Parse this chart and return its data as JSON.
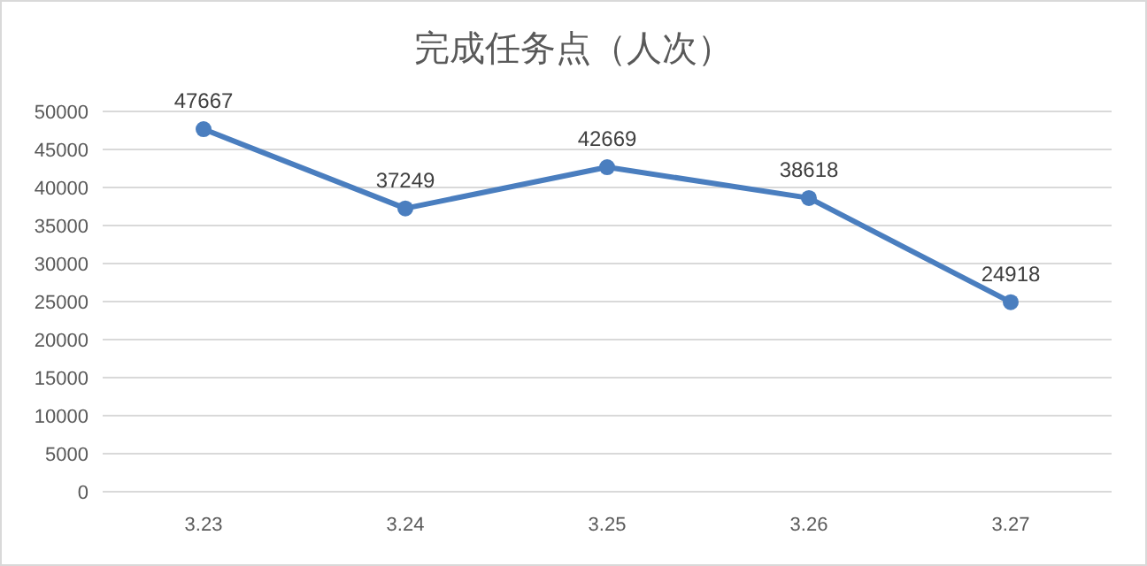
{
  "chart_data": {
    "type": "line",
    "title": "完成任务点（人次）",
    "categories": [
      "3.23",
      "3.24",
      "3.25",
      "3.26",
      "3.27"
    ],
    "values": [
      47667,
      37249,
      42669,
      38618,
      24918
    ],
    "color": "#4a7ebf",
    "ylim": [
      0,
      50000
    ],
    "yticks": [
      0,
      5000,
      10000,
      15000,
      20000,
      25000,
      30000,
      35000,
      40000,
      45000,
      50000
    ],
    "grid": "y",
    "data_labels": true,
    "marker": "circle"
  }
}
